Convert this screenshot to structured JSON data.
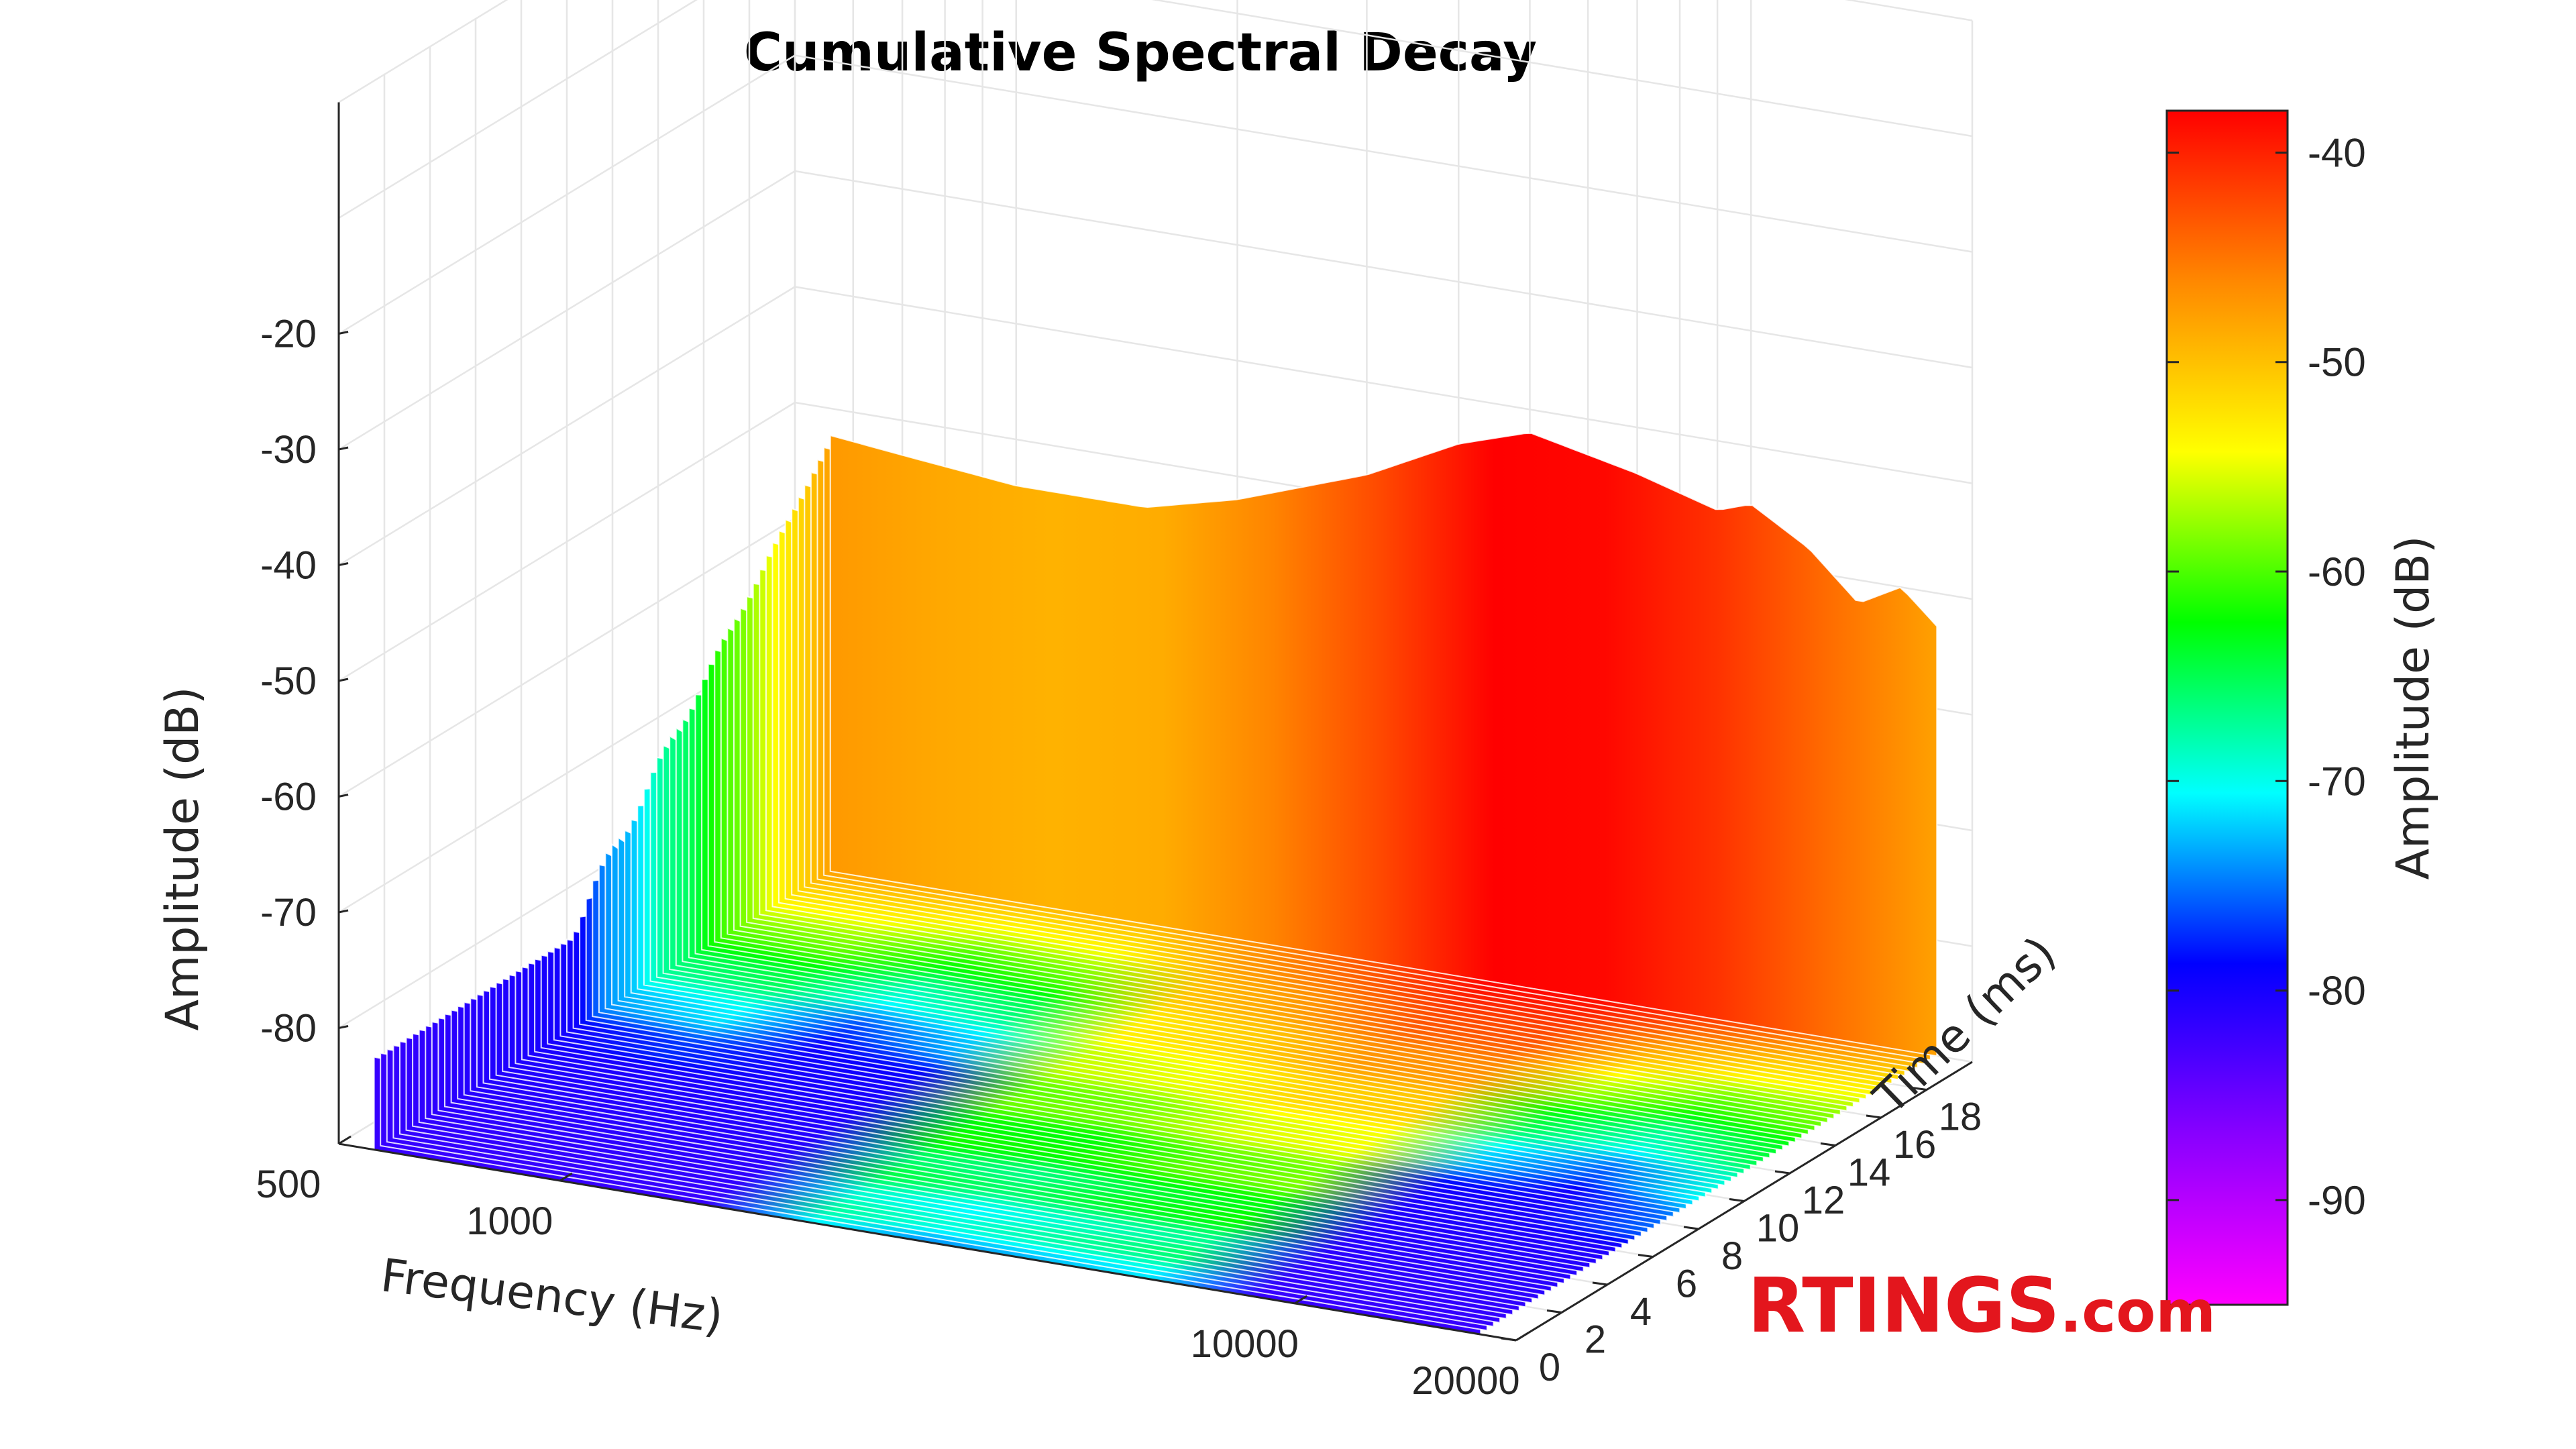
{
  "chart_data": {
    "type": "surface",
    "title": "Cumulative Spectral Decay",
    "xlabel": "Frequency (Hz)",
    "ylabel": "Time (ms)",
    "zlabel": "Amplitude (dB)",
    "x_scale": "log",
    "xlim": [
      500,
      20000
    ],
    "ylim": [
      0,
      20
    ],
    "zlim": [
      -90,
      -10
    ],
    "grid": true,
    "x_tick_labels": [
      "500",
      "1000",
      "10000",
      "20000"
    ],
    "y_tick_labels": [
      "0",
      "2",
      "4",
      "6",
      "8",
      "10",
      "12",
      "14",
      "16",
      "18"
    ],
    "z_tick_labels": [
      "-20",
      "-30",
      "-40",
      "-50",
      "-60",
      "-70",
      "-80"
    ],
    "initial_response": {
      "frequency_hz": [
        500,
        700,
        1000,
        1500,
        2000,
        3000,
        4000,
        5000,
        7000,
        9000,
        10000,
        12000,
        14000,
        16000,
        18000,
        20000
      ],
      "amplitude_db": [
        -52,
        -53,
        -54,
        -54,
        -52,
        -48,
        -44,
        -42,
        -44,
        -46,
        -45,
        -48,
        -52,
        -50,
        -53,
        -55
      ]
    },
    "colorbar": {
      "label": "Amplitude (dB)",
      "range": [
        -95,
        -38
      ],
      "tick_labels": [
        "-40",
        "-50",
        "-60",
        "-70",
        "-80",
        "-90"
      ],
      "colormap": [
        "#ff00ff",
        "#8800ff",
        "#0000ff",
        "#00ffff",
        "#00ff00",
        "#ffff00",
        "#ff8800",
        "#ff0000"
      ]
    }
  },
  "logo": {
    "main": "RTINGS",
    "suffix": ".com",
    "color": "#e3161d"
  }
}
